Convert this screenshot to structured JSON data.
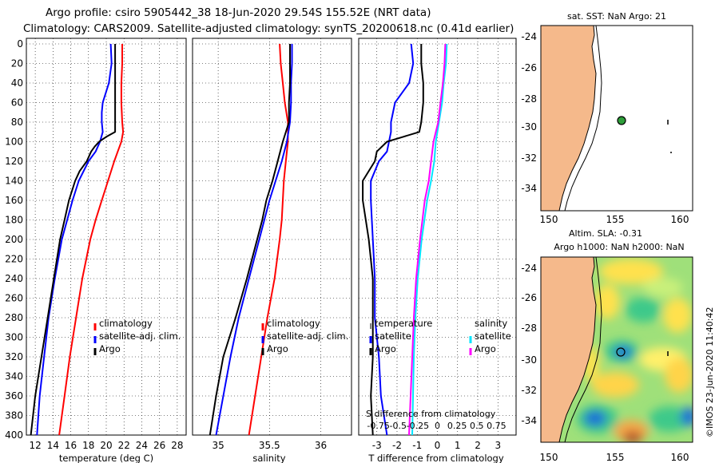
{
  "header": {
    "line1": "Argo profile: csiro 5905442_38 18-Jun-2020 29.54S 155.52E (NRT data)",
    "line2": "Climatology: CARS2009. Satellite-adjusted climatology: synTS_20200618.nc (0.41d earlier)"
  },
  "colors": {
    "climatology": "#ff0000",
    "satellite": "#0000ff",
    "argo": "#000000",
    "sal_satellite": "#00e5ff",
    "sal_argo": "#ff00ff",
    "land": "#f5b98b"
  },
  "depth_ticks": [
    "0",
    "20",
    "40",
    "60",
    "80",
    "100",
    "120",
    "140",
    "160",
    "180",
    "200",
    "220",
    "240",
    "260",
    "280",
    "300",
    "320",
    "340",
    "360",
    "380",
    "400"
  ],
  "chart_data": [
    {
      "type": "line",
      "id": "temperature",
      "xlabel": "temperature (deg C)",
      "ylabel": "",
      "xlim": [
        11,
        29
      ],
      "ylim": [
        400,
        0
      ],
      "xticks": [
        "12",
        "14",
        "16",
        "18",
        "20",
        "22",
        "24",
        "26",
        "28"
      ],
      "legend": [
        "climatology",
        "satellite-adj. clim.",
        "Argo"
      ],
      "legend_position": "lower-right",
      "series": [
        {
          "name": "climatology",
          "color": "red",
          "depth": [
            0,
            20,
            40,
            60,
            80,
            90,
            100,
            110,
            120,
            140,
            160,
            180,
            200,
            240,
            280,
            320,
            360,
            400
          ],
          "values": [
            21.8,
            21.8,
            21.7,
            21.7,
            21.8,
            21.9,
            21.7,
            21.3,
            20.9,
            20.2,
            19.5,
            18.8,
            18.2,
            17.3,
            16.6,
            15.9,
            15.3,
            14.7
          ]
        },
        {
          "name": "satellite-adj. clim.",
          "color": "blue",
          "depth": [
            0,
            20,
            40,
            60,
            70,
            80,
            90,
            100,
            110,
            120,
            140,
            160,
            180,
            200,
            240,
            280,
            320,
            360,
            400
          ],
          "values": [
            20.5,
            20.6,
            20.3,
            19.6,
            19.5,
            19.5,
            19.6,
            19.3,
            18.8,
            18.0,
            16.9,
            16.2,
            15.6,
            15.0,
            14.2,
            13.5,
            13.0,
            12.5,
            12.2
          ]
        },
        {
          "name": "Argo",
          "color": "black",
          "depth": [
            0,
            20,
            40,
            60,
            80,
            90,
            95,
            100,
            105,
            110,
            120,
            130,
            140,
            160,
            180,
            200,
            240,
            280,
            320,
            360,
            400
          ],
          "values": [
            21.0,
            21.0,
            21.0,
            21.0,
            21.0,
            21.0,
            20.0,
            19.2,
            18.7,
            18.3,
            17.8,
            17.0,
            16.5,
            15.8,
            15.3,
            14.8,
            14.1,
            13.4,
            12.7,
            12.0,
            11.5
          ]
        }
      ]
    },
    {
      "type": "line",
      "id": "salinity",
      "xlabel": "salinity",
      "ylabel": "",
      "xlim": [
        34.75,
        36.3
      ],
      "ylim": [
        400,
        0
      ],
      "xticks": [
        "35",
        "35.5",
        "36"
      ],
      "legend": [
        "climatology",
        "satellite-adj. clim.",
        "Argo"
      ],
      "legend_position": "lower-right",
      "series": [
        {
          "name": "climatology",
          "color": "red",
          "depth": [
            0,
            20,
            40,
            60,
            80,
            100,
            120,
            140,
            160,
            180,
            200,
            240,
            280,
            320,
            360,
            400
          ],
          "values": [
            35.6,
            35.61,
            35.63,
            35.65,
            35.68,
            35.68,
            35.66,
            35.64,
            35.63,
            35.62,
            35.6,
            35.55,
            35.48,
            35.42,
            35.36,
            35.3
          ]
        },
        {
          "name": "satellite-adj. clim.",
          "color": "blue",
          "depth": [
            0,
            20,
            40,
            60,
            80,
            100,
            120,
            140,
            160,
            180,
            200,
            240,
            280,
            320,
            360,
            400
          ],
          "values": [
            35.72,
            35.72,
            35.71,
            35.71,
            35.7,
            35.67,
            35.62,
            35.56,
            35.5,
            35.45,
            35.4,
            35.3,
            35.2,
            35.12,
            35.05,
            34.98
          ]
        },
        {
          "name": "Argo",
          "color": "black",
          "depth": [
            0,
            20,
            40,
            60,
            80,
            100,
            120,
            140,
            160,
            180,
            200,
            240,
            280,
            320,
            360,
            400
          ],
          "values": [
            35.7,
            35.7,
            35.7,
            35.69,
            35.69,
            35.63,
            35.58,
            35.53,
            35.47,
            35.43,
            35.38,
            35.28,
            35.17,
            35.05,
            34.98,
            34.92
          ]
        }
      ]
    },
    {
      "type": "line",
      "id": "difference",
      "xlabel": "T difference from climatology",
      "xlabel_top": "S difference from climatology",
      "ylabel": "",
      "xlim": [
        -3.9,
        3.9
      ],
      "ylim": [
        400,
        0
      ],
      "xticks": [
        "-3",
        "-2",
        "-1",
        "0",
        "1",
        "2",
        "3"
      ],
      "xticks_top": [
        "-0.75",
        "-0.5",
        "-0.25",
        "0",
        "0.25",
        "0.5",
        "0.75"
      ],
      "legend_left": [
        "temperature",
        "satellite",
        "Argo"
      ],
      "legend_right": [
        "salinity",
        "satellite",
        "Argo"
      ],
      "series": [
        {
          "name": "temperature satellite",
          "color": "blue",
          "depth": [
            0,
            20,
            40,
            60,
            80,
            90,
            100,
            110,
            120,
            140,
            160,
            200,
            240,
            280,
            320,
            360,
            400
          ],
          "values": [
            -1.3,
            -1.2,
            -1.4,
            -2.1,
            -2.3,
            -2.3,
            -2.4,
            -2.5,
            -2.9,
            -3.3,
            -3.3,
            -3.2,
            -3.1,
            -3.1,
            -2.9,
            -2.8,
            -2.5
          ]
        },
        {
          "name": "temperature Argo",
          "color": "black",
          "depth": [
            0,
            20,
            40,
            60,
            80,
            90,
            95,
            100,
            110,
            120,
            140,
            160,
            200,
            240,
            280,
            320,
            360,
            400
          ],
          "values": [
            -0.8,
            -0.8,
            -0.7,
            -0.7,
            -0.8,
            -0.9,
            -1.7,
            -2.5,
            -3.0,
            -3.1,
            -3.7,
            -3.7,
            -3.4,
            -3.2,
            -3.2,
            -3.2,
            -3.3,
            -3.2
          ]
        },
        {
          "name": "salinity satellite",
          "color": "cyan",
          "depth": [
            0,
            20,
            40,
            60,
            80,
            100,
            120,
            140,
            160,
            200,
            240,
            280,
            320,
            360,
            400
          ],
          "values": [
            0.12,
            0.11,
            0.08,
            0.06,
            0.02,
            -0.02,
            -0.04,
            -0.08,
            -0.13,
            -0.2,
            -0.25,
            -0.28,
            -0.3,
            -0.31,
            -0.32
          ]
        },
        {
          "name": "salinity Argo",
          "color": "magenta",
          "depth": [
            0,
            20,
            40,
            60,
            80,
            100,
            120,
            140,
            160,
            200,
            240,
            280,
            320,
            360,
            400
          ],
          "values": [
            0.1,
            0.09,
            0.07,
            0.04,
            0.01,
            -0.05,
            -0.08,
            -0.11,
            -0.16,
            -0.22,
            -0.27,
            -0.3,
            -0.32,
            -0.34,
            -0.36
          ]
        }
      ]
    },
    {
      "type": "map",
      "id": "sst-map",
      "title": "sat. SST: NaN Argo: 21",
      "xticks": [
        "150",
        "155",
        "160"
      ],
      "yticks": [
        "-24",
        "-26",
        "-28",
        "-30",
        "-32",
        "-34"
      ],
      "float_lon": 155.52,
      "float_lat": -29.54
    },
    {
      "type": "heatmap",
      "id": "sla-map",
      "title_line1": "Altim. SLA: -0.31",
      "title_line2": "Argo h1000: NaN h2000: NaN",
      "xticks": [
        "150",
        "155",
        "160"
      ],
      "yticks": [
        "-24",
        "-26",
        "-28",
        "-30",
        "-32",
        "-34"
      ],
      "float_lon": 155.52,
      "float_lat": -29.54
    }
  ],
  "credit": "©IMOS 23-Jun-2020 11:40:42"
}
